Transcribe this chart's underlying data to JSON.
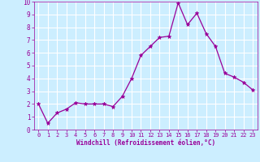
{
  "x": [
    0,
    1,
    2,
    3,
    4,
    5,
    6,
    7,
    8,
    9,
    10,
    11,
    12,
    13,
    14,
    15,
    16,
    17,
    18,
    19,
    20,
    21,
    22,
    23
  ],
  "y": [
    2.0,
    0.5,
    1.3,
    1.6,
    2.1,
    2.0,
    2.0,
    2.0,
    1.8,
    2.6,
    4.0,
    5.8,
    6.5,
    7.2,
    7.3,
    9.9,
    8.2,
    9.1,
    7.5,
    6.5,
    4.4,
    4.1,
    3.7,
    3.1
  ],
  "line_color": "#990099",
  "marker": "*",
  "marker_size": 3.5,
  "bg_color": "#cceeff",
  "grid_color": "#ffffff",
  "xlabel": "Windchill (Refroidissement éolien,°C)",
  "tick_color": "#990099",
  "label_color": "#990099",
  "xlim": [
    -0.5,
    23.5
  ],
  "ylim": [
    0,
    10
  ],
  "xticks": [
    0,
    1,
    2,
    3,
    4,
    5,
    6,
    7,
    8,
    9,
    10,
    11,
    12,
    13,
    14,
    15,
    16,
    17,
    18,
    19,
    20,
    21,
    22,
    23
  ],
  "yticks": [
    0,
    1,
    2,
    3,
    4,
    5,
    6,
    7,
    8,
    9,
    10
  ],
  "spine_color": "#990099"
}
